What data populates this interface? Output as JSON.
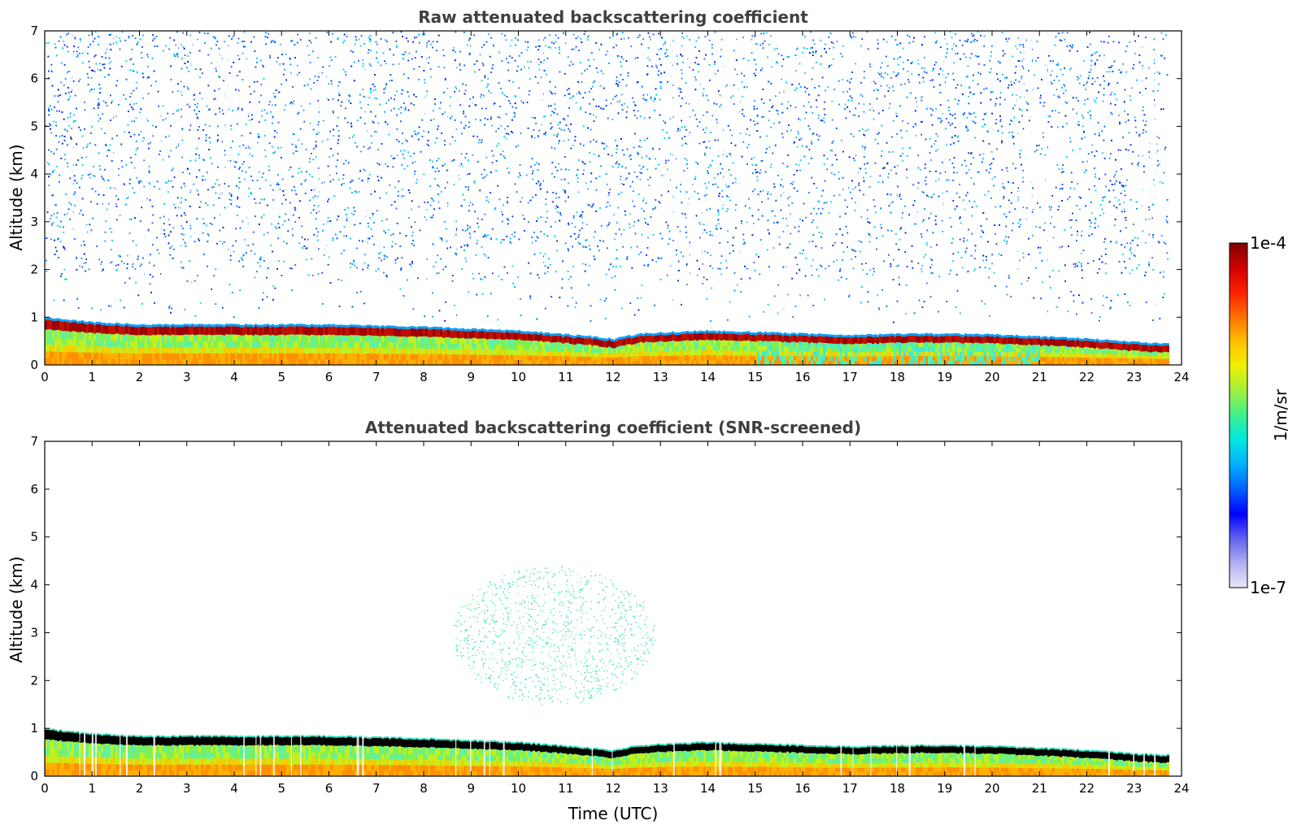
{
  "chart_data": [
    {
      "type": "heatmap",
      "title": "Raw attenuated backscattering coefficient",
      "xlabel": "",
      "ylabel": "Altitude (km)",
      "xlim": [
        0,
        24
      ],
      "ylim": [
        0,
        7
      ],
      "x_ticks": [
        "0",
        "1",
        "2",
        "3",
        "4",
        "5",
        "6",
        "7",
        "8",
        "9",
        "10",
        "11",
        "12",
        "13",
        "14",
        "15",
        "16",
        "17",
        "18",
        "19",
        "20",
        "21",
        "22",
        "23",
        "24"
      ],
      "y_ticks": [
        "0",
        "1",
        "2",
        "3",
        "4",
        "5",
        "6",
        "7"
      ],
      "data_time_extent": [
        0,
        23.7
      ],
      "noise": {
        "altitude_range": [
          1.0,
          7.0
        ],
        "level": "low (blue–cyan speckle)"
      },
      "layer_top": [
        {
          "time": 0,
          "altitude": 1.0
        },
        {
          "time": 1,
          "altitude": 0.9
        },
        {
          "time": 2,
          "altitude": 0.85
        },
        {
          "time": 4,
          "altitude": 0.85
        },
        {
          "time": 6,
          "altitude": 0.85
        },
        {
          "time": 8,
          "altitude": 0.8
        },
        {
          "time": 10,
          "altitude": 0.72
        },
        {
          "time": 11.5,
          "altitude": 0.6
        },
        {
          "time": 12,
          "altitude": 0.55
        },
        {
          "time": 12.5,
          "altitude": 0.65
        },
        {
          "time": 13,
          "altitude": 0.68
        },
        {
          "time": 14,
          "altitude": 0.72
        },
        {
          "time": 16,
          "altitude": 0.66
        },
        {
          "time": 17,
          "altitude": 0.63
        },
        {
          "time": 18.5,
          "altitude": 0.66
        },
        {
          "time": 20,
          "altitude": 0.64
        },
        {
          "time": 21,
          "altitude": 0.6
        },
        {
          "time": 22,
          "altitude": 0.55
        },
        {
          "time": 23,
          "altitude": 0.48
        },
        {
          "time": 23.7,
          "altitude": 0.45
        }
      ]
    },
    {
      "type": "heatmap",
      "title": "Attenuated backscattering coefficient (SNR-screened)",
      "xlabel": "Time (UTC)",
      "ylabel": "Altitude (km)",
      "xlim": [
        0,
        24
      ],
      "ylim": [
        0,
        7
      ],
      "x_ticks": [
        "0",
        "1",
        "2",
        "3",
        "4",
        "5",
        "6",
        "7",
        "8",
        "9",
        "10",
        "11",
        "12",
        "13",
        "14",
        "15",
        "16",
        "17",
        "18",
        "19",
        "20",
        "21",
        "22",
        "23",
        "24"
      ],
      "y_ticks": [
        "0",
        "1",
        "2",
        "3",
        "4",
        "5",
        "6",
        "7"
      ],
      "data_time_extent": [
        0,
        23.7
      ],
      "noise": {
        "time_range": [
          8.6,
          12.9
        ],
        "altitude_range": [
          1.5,
          4.4
        ],
        "level": "sparse cyan points"
      },
      "layer_top_same_as_panel": 1
    }
  ],
  "colorbar": {
    "max_label": "1e-4",
    "min_label": "1e-7",
    "unit_label": "1/m/sr",
    "colormap": [
      "#e8e8f8",
      "#b0b0f0",
      "#6060f0",
      "#0000ff",
      "#0060ff",
      "#00b0ff",
      "#00e8e0",
      "#40f090",
      "#a0f040",
      "#f0f000",
      "#ffc000",
      "#ff7000",
      "#ff2000",
      "#d00000",
      "#800000"
    ]
  }
}
